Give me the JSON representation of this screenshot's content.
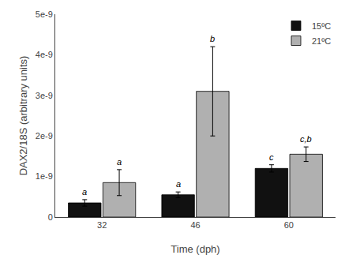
{
  "chart_data": {
    "type": "bar",
    "categories": [
      "32",
      "46",
      "60"
    ],
    "xlabel": "Time (dph)",
    "ylabel": "DAX2/18S (arbitrary units)",
    "series": [
      {
        "name": "15ºC",
        "color": "#111111",
        "values": [
          3.5e-10,
          5.5e-10,
          1.2e-09
        ],
        "error": [
          8e-11,
          7e-11,
          9e-11
        ],
        "annotations": [
          "a",
          "a",
          "c"
        ]
      },
      {
        "name": "21ºC",
        "color": "#b0b0b0",
        "values": [
          8.5e-10,
          3.1e-09,
          1.55e-09
        ],
        "error": [
          3.2e-10,
          1.1e-09,
          1.8e-10
        ],
        "annotations": [
          "a",
          "b",
          "c,b"
        ]
      }
    ],
    "ylim": [
      0,
      5e-09
    ],
    "yticks": [
      0,
      {
        "value": 1e-09,
        "label": "1e-9"
      },
      {
        "value": 2e-09,
        "label": "2e-9"
      },
      {
        "value": 3e-09,
        "label": "3e-9"
      },
      {
        "value": 4e-09,
        "label": "4e-9"
      },
      {
        "value": 5e-09,
        "label": "5e-9"
      }
    ],
    "grid": false,
    "legend": "upper right"
  }
}
